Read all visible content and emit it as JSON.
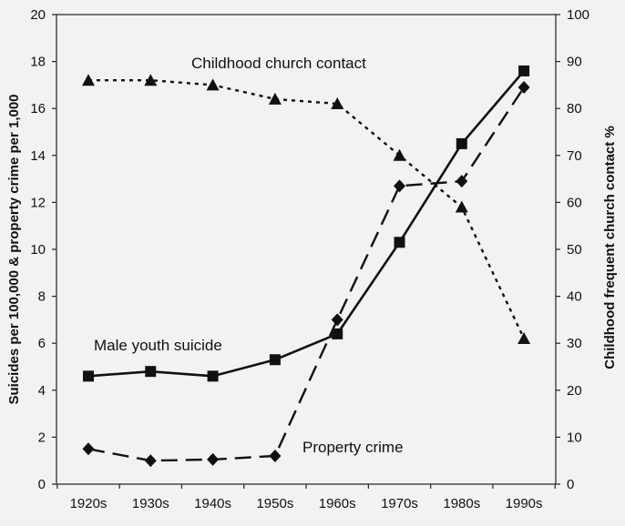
{
  "chart_data": {
    "type": "line",
    "categories": [
      "1920s",
      "1930s",
      "1940s",
      "1950s",
      "1960s",
      "1970s",
      "1980s",
      "1990s"
    ],
    "ylim": [
      0,
      20
    ],
    "y_ticks": [
      0,
      2,
      4,
      6,
      8,
      10,
      12,
      14,
      16,
      18,
      20
    ],
    "y2lim": [
      0,
      100
    ],
    "y2_ticks": [
      0,
      10,
      20,
      30,
      40,
      50,
      60,
      70,
      80,
      90,
      100
    ],
    "ylabel": "Suicides per 100,000 & property crime per 1,000",
    "y2label": "Childhood frequent church contact %",
    "grid": false,
    "background": "#f2f2f2",
    "series": [
      {
        "name": "Male youth suicide",
        "axis": "left",
        "marker": "square",
        "line_style": "solid",
        "color": "#111111",
        "values": [
          4.6,
          4.8,
          4.6,
          5.3,
          6.4,
          10.3,
          14.5,
          17.6
        ]
      },
      {
        "name": "Property crime",
        "axis": "left",
        "marker": "diamond",
        "line_style": "long-dash",
        "color": "#111111",
        "values": [
          1.5,
          1.0,
          1.05,
          1.2,
          7.0,
          12.7,
          12.9,
          16.9
        ]
      },
      {
        "name": "Childhood church contact",
        "axis": "right",
        "marker": "triangle",
        "line_style": "dotted",
        "color": "#111111",
        "values": [
          86,
          86,
          85,
          82,
          81,
          70,
          59,
          31
        ]
      }
    ],
    "annotations": [
      {
        "text": "Childhood church contact",
        "series": "Childhood church contact"
      },
      {
        "text": "Male youth suicide",
        "series": "Male youth suicide"
      },
      {
        "text": "Property crime",
        "series": "Property crime"
      }
    ]
  }
}
